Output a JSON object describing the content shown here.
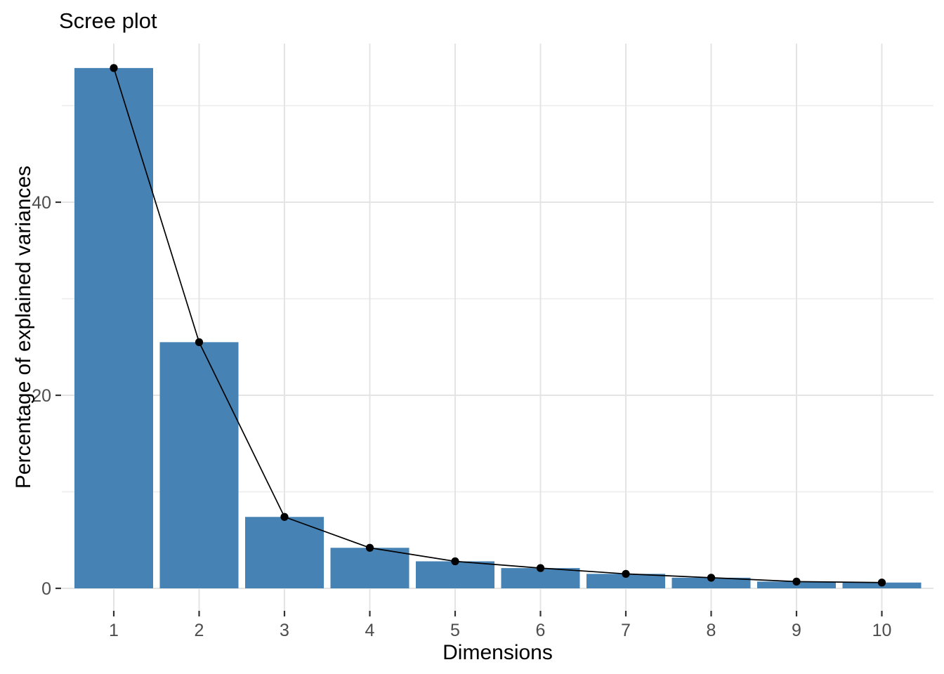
{
  "chart_data": {
    "type": "bar",
    "overlay": "line-with-points on same values",
    "title": "Scree plot",
    "xlabel": "Dimensions",
    "ylabel": "Percentage of explained variances",
    "categories": [
      "1",
      "2",
      "3",
      "4",
      "5",
      "6",
      "7",
      "8",
      "9",
      "10"
    ],
    "values": [
      53.9,
      25.5,
      7.4,
      4.2,
      2.8,
      2.1,
      1.5,
      1.1,
      0.7,
      0.6
    ],
    "y_axis": {
      "major_ticks": [
        0,
        20,
        40
      ],
      "major_tick_labels": [
        "0",
        "20",
        "40"
      ],
      "minor_ticks": [
        10,
        30,
        50
      ],
      "range": [
        -2.3,
        56.4
      ]
    },
    "x_axis": {
      "tick_labels": [
        "1",
        "2",
        "3",
        "4",
        "5",
        "6",
        "7",
        "8",
        "9",
        "10"
      ]
    },
    "grid": "major and minor horizontal, major vertical per category",
    "legend": "none",
    "colors": {
      "bar_fill": "#4682B4",
      "line": "#000000",
      "point": "#000000",
      "grid_major": "#e4e4e4",
      "grid_minor": "#ececec",
      "tick_mark": "#333333",
      "tick_label": "#4d4d4d",
      "title_text": "#000000",
      "background": "#ffffff"
    }
  }
}
